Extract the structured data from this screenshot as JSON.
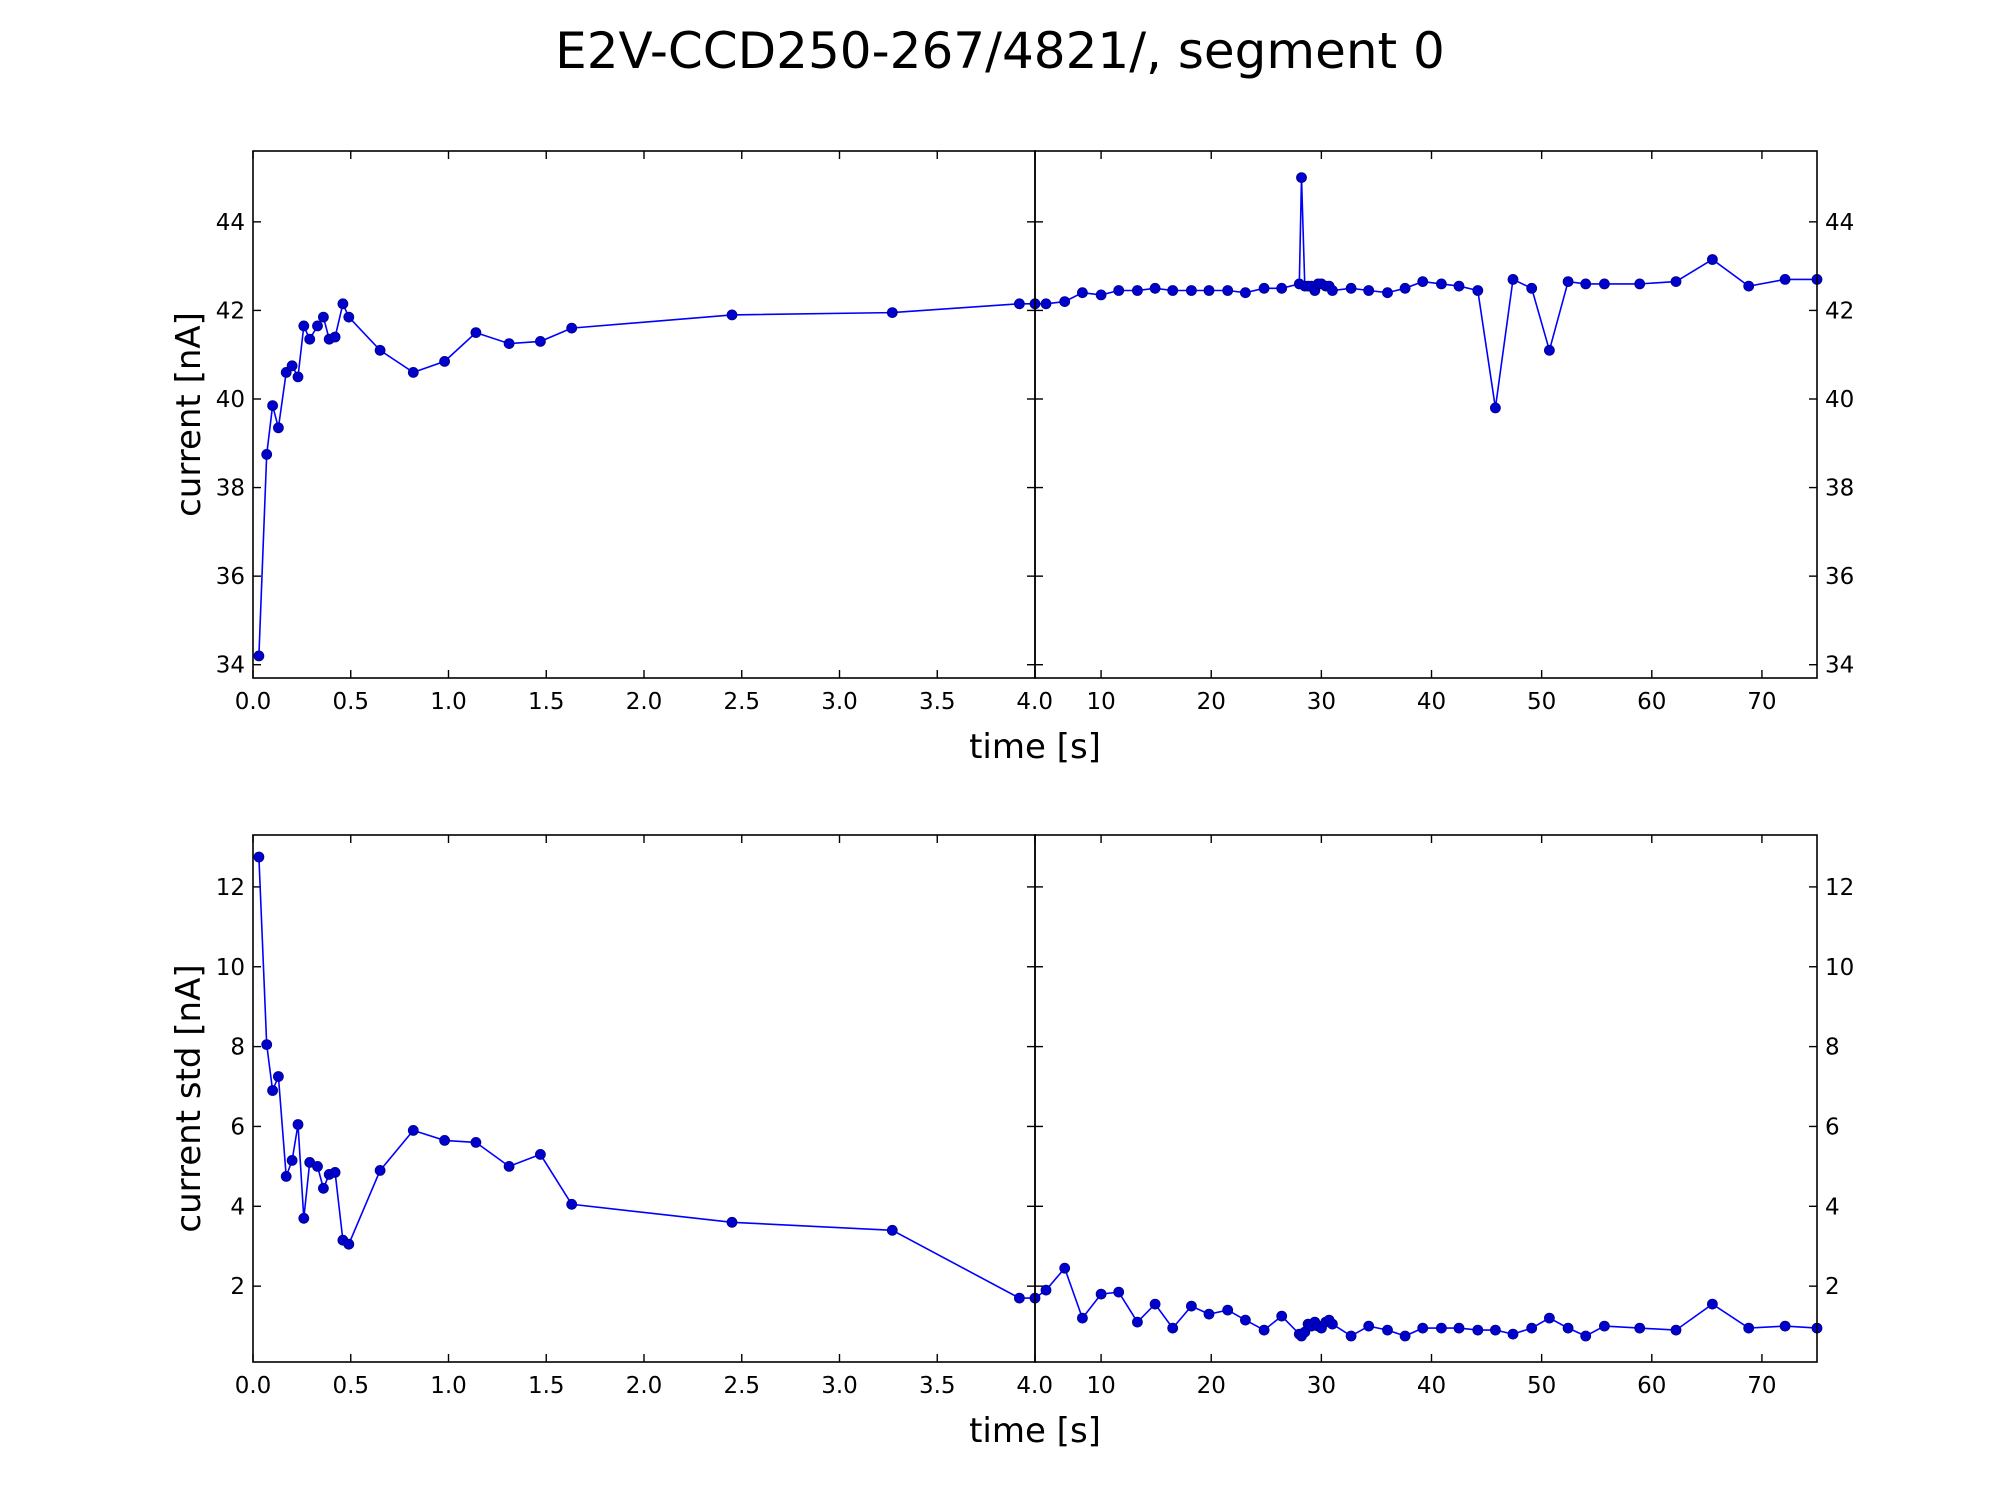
{
  "figure": {
    "title": "E2V-CCD250-267/4821/, segment 0"
  },
  "chart_data": [
    {
      "type": "line",
      "marker": "circle",
      "color": "#0000cc",
      "xlabel": "time [s]",
      "ylabel": "current [nA]",
      "ylim": [
        33.7,
        45.6
      ],
      "yticks": [
        34,
        36,
        38,
        40,
        42,
        44
      ],
      "ytick_labels": [
        "34",
        "36",
        "38",
        "40",
        "42",
        "44"
      ],
      "y_ticks_mirrored_right": true,
      "broken_x_axis": true,
      "panels": [
        {
          "xlim": [
            0.0,
            4.0
          ],
          "xticks": [
            0.0,
            0.5,
            1.0,
            1.5,
            2.0,
            2.5,
            3.0,
            3.5,
            4.0
          ],
          "xtick_labels": [
            "0.0",
            "0.5",
            "1.0",
            "1.5",
            "2.0",
            "2.5",
            "3.0",
            "3.5",
            "4.0"
          ]
        },
        {
          "xlim": [
            4.0,
            75.0
          ],
          "xticks": [
            10,
            20,
            30,
            40,
            50,
            60,
            70
          ],
          "xtick_labels": [
            "10",
            "20",
            "30",
            "40",
            "50",
            "60",
            "70"
          ]
        }
      ],
      "x": [
        0.03,
        0.07,
        0.1,
        0.13,
        0.17,
        0.2,
        0.23,
        0.26,
        0.29,
        0.33,
        0.36,
        0.39,
        0.42,
        0.46,
        0.49,
        0.65,
        0.82,
        0.98,
        1.14,
        1.31,
        1.47,
        1.63,
        2.45,
        3.27,
        3.92,
        4.0,
        5.0,
        6.7,
        8.3,
        10.0,
        11.6,
        13.3,
        14.9,
        16.5,
        18.2,
        19.8,
        21.5,
        23.1,
        24.8,
        26.4,
        28.0,
        28.2,
        28.5,
        28.8,
        29.1,
        29.4,
        29.7,
        30.0,
        30.4,
        30.7,
        31.0,
        32.7,
        34.3,
        36.0,
        37.6,
        39.2,
        40.9,
        42.5,
        44.2,
        45.8,
        47.4,
        49.1,
        50.7,
        52.4,
        54.0,
        55.7,
        58.9,
        62.2,
        65.5,
        68.8,
        72.1,
        75.0
      ],
      "y": [
        34.2,
        38.75,
        39.85,
        39.35,
        40.6,
        40.75,
        40.5,
        41.65,
        41.35,
        41.65,
        41.85,
        41.35,
        41.4,
        42.15,
        41.85,
        41.1,
        40.6,
        40.85,
        41.5,
        41.25,
        41.3,
        41.6,
        41.9,
        41.95,
        42.15,
        42.15,
        42.15,
        42.2,
        42.4,
        42.35,
        42.45,
        42.45,
        42.5,
        42.45,
        42.45,
        42.45,
        42.45,
        42.4,
        42.5,
        42.5,
        42.6,
        45.0,
        42.55,
        42.55,
        42.55,
        42.45,
        42.6,
        42.6,
        42.55,
        42.55,
        42.45,
        42.5,
        42.45,
        42.4,
        42.5,
        42.65,
        42.6,
        42.55,
        42.45,
        39.8,
        42.7,
        42.5,
        41.1,
        42.65,
        42.6,
        42.6,
        42.6,
        42.65,
        43.15,
        42.55,
        42.7,
        42.7
      ]
    },
    {
      "type": "line",
      "marker": "circle",
      "color": "#0000cc",
      "xlabel": "time [s]",
      "ylabel": "current std [nA]",
      "ylim": [
        0.1,
        13.3
      ],
      "yticks": [
        2,
        4,
        6,
        8,
        10,
        12
      ],
      "ytick_labels": [
        "2",
        "4",
        "6",
        "8",
        "10",
        "12"
      ],
      "y_ticks_mirrored_right": true,
      "broken_x_axis": true,
      "panels": [
        {
          "xlim": [
            0.0,
            4.0
          ],
          "xticks": [
            0.0,
            0.5,
            1.0,
            1.5,
            2.0,
            2.5,
            3.0,
            3.5,
            4.0
          ],
          "xtick_labels": [
            "0.0",
            "0.5",
            "1.0",
            "1.5",
            "2.0",
            "2.5",
            "3.0",
            "3.5",
            "4.0"
          ]
        },
        {
          "xlim": [
            4.0,
            75.0
          ],
          "xticks": [
            10,
            20,
            30,
            40,
            50,
            60,
            70
          ],
          "xtick_labels": [
            "10",
            "20",
            "30",
            "40",
            "50",
            "60",
            "70"
          ]
        }
      ],
      "x": [
        0.03,
        0.07,
        0.1,
        0.13,
        0.17,
        0.2,
        0.23,
        0.26,
        0.29,
        0.33,
        0.36,
        0.39,
        0.42,
        0.46,
        0.49,
        0.65,
        0.82,
        0.98,
        1.14,
        1.31,
        1.47,
        1.63,
        2.45,
        3.27,
        3.92,
        4.0,
        5.0,
        6.7,
        8.3,
        10.0,
        11.6,
        13.3,
        14.9,
        16.5,
        18.2,
        19.8,
        21.5,
        23.1,
        24.8,
        26.4,
        28.0,
        28.2,
        28.5,
        28.8,
        29.1,
        29.4,
        29.7,
        30.0,
        30.4,
        30.7,
        31.0,
        32.7,
        34.3,
        36.0,
        37.6,
        39.2,
        40.9,
        42.5,
        44.2,
        45.8,
        47.4,
        49.1,
        50.7,
        52.4,
        54.0,
        55.7,
        58.9,
        62.2,
        65.5,
        68.8,
        72.1,
        75.0
      ],
      "y": [
        12.75,
        8.05,
        6.9,
        7.25,
        4.75,
        5.15,
        6.05,
        3.7,
        5.1,
        5.0,
        4.45,
        4.8,
        4.85,
        3.15,
        3.05,
        4.9,
        5.9,
        5.65,
        5.6,
        5.0,
        5.3,
        4.05,
        3.6,
        3.4,
        1.7,
        1.7,
        1.9,
        2.45,
        1.2,
        1.8,
        1.85,
        1.1,
        1.55,
        0.95,
        1.5,
        1.3,
        1.4,
        1.15,
        0.9,
        1.25,
        0.8,
        0.75,
        0.85,
        1.05,
        1.0,
        1.1,
        1.0,
        0.95,
        1.1,
        1.15,
        1.05,
        0.75,
        1.0,
        0.9,
        0.75,
        0.95,
        0.95,
        0.95,
        0.9,
        0.9,
        0.8,
        0.95,
        1.2,
        0.95,
        0.75,
        1.0,
        0.95,
        0.9,
        1.55,
        0.95,
        1.0,
        0.95
      ]
    }
  ]
}
